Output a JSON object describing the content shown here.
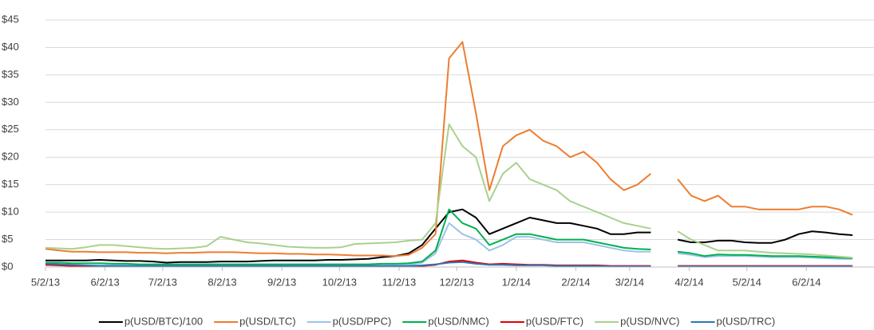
{
  "chart_data": {
    "type": "line",
    "x": [
      "2013-05-02",
      "2013-05-09",
      "2013-05-16",
      "2013-05-23",
      "2013-05-30",
      "2013-06-06",
      "2013-06-13",
      "2013-06-20",
      "2013-06-27",
      "2013-07-04",
      "2013-07-11",
      "2013-07-18",
      "2013-07-25",
      "2013-08-01",
      "2013-08-08",
      "2013-08-15",
      "2013-08-22",
      "2013-08-29",
      "2013-09-05",
      "2013-09-12",
      "2013-09-19",
      "2013-09-26",
      "2013-10-03",
      "2013-10-10",
      "2013-10-17",
      "2013-10-24",
      "2013-10-31",
      "2013-11-07",
      "2013-11-14",
      "2013-11-21",
      "2013-11-28",
      "2013-12-05",
      "2013-12-12",
      "2013-12-19",
      "2013-12-26",
      "2014-01-02",
      "2014-01-09",
      "2014-01-16",
      "2014-01-23",
      "2014-01-30",
      "2014-02-06",
      "2014-02-13",
      "2014-02-20",
      "2014-02-27",
      "2014-03-06",
      "2014-03-13",
      "2014-03-20",
      "2014-03-27",
      "2014-04-03",
      "2014-04-10",
      "2014-04-17",
      "2014-04-24",
      "2014-05-01",
      "2014-05-08",
      "2014-05-15",
      "2014-05-22",
      "2014-05-29",
      "2014-06-05",
      "2014-06-12",
      "2014-06-19",
      "2014-06-26"
    ],
    "xlim": [
      "2013-05-02",
      "2014-07-03"
    ],
    "xticks": [
      {
        "value": "2013-05-02",
        "label": "5/2/13"
      },
      {
        "value": "2013-06-02",
        "label": "6/2/13"
      },
      {
        "value": "2013-07-02",
        "label": "7/2/13"
      },
      {
        "value": "2013-08-02",
        "label": "8/2/13"
      },
      {
        "value": "2013-09-02",
        "label": "9/2/13"
      },
      {
        "value": "2013-10-02",
        "label": "10/2/13"
      },
      {
        "value": "2013-11-02",
        "label": "11/2/13"
      },
      {
        "value": "2013-12-02",
        "label": "12/2/13"
      },
      {
        "value": "2014-01-02",
        "label": "1/2/14"
      },
      {
        "value": "2014-02-02",
        "label": "2/2/14"
      },
      {
        "value": "2014-03-02",
        "label": "3/2/14"
      },
      {
        "value": "2014-04-02",
        "label": "4/2/14"
      },
      {
        "value": "2014-05-02",
        "label": "5/2/14"
      },
      {
        "value": "2014-06-02",
        "label": "6/2/14"
      }
    ],
    "ylim": [
      0,
      45
    ],
    "yticks": [
      {
        "value": 0,
        "label": "$0"
      },
      {
        "value": 5,
        "label": "$5"
      },
      {
        "value": 10,
        "label": "$10"
      },
      {
        "value": 15,
        "label": "$15"
      },
      {
        "value": 20,
        "label": "$20"
      },
      {
        "value": 25,
        "label": "$25"
      },
      {
        "value": 30,
        "label": "$30"
      },
      {
        "value": 35,
        "label": "$35"
      },
      {
        "value": 40,
        "label": "$40"
      },
      {
        "value": 45,
        "label": "$45"
      }
    ],
    "grid": true,
    "legend": "bottom",
    "series": [
      {
        "name": "p(USD/BTC)/100",
        "color": "#000000",
        "values": [
          1.2,
          1.2,
          1.2,
          1.2,
          1.3,
          1.2,
          1.1,
          1.1,
          1.0,
          0.8,
          0.9,
          0.9,
          0.9,
          1.0,
          1.0,
          1.0,
          1.1,
          1.2,
          1.2,
          1.2,
          1.2,
          1.3,
          1.3,
          1.4,
          1.5,
          1.8,
          2.0,
          2.5,
          4,
          7,
          10,
          10.5,
          9,
          6,
          7,
          8,
          9,
          8.5,
          8,
          8,
          7.5,
          7,
          6,
          6,
          6.3,
          6.3,
          null,
          5,
          4.5,
          4.5,
          4.8,
          4.8,
          4.5,
          4.4,
          4.4,
          5,
          6,
          6.5,
          6.3,
          6,
          5.8
        ]
      },
      {
        "name": "p(USD/LTC)",
        "color": "#ed7d31",
        "values": [
          3.3,
          3.0,
          2.8,
          2.8,
          2.7,
          2.7,
          2.7,
          2.6,
          2.6,
          2.5,
          2.6,
          2.6,
          2.7,
          2.7,
          2.7,
          2.6,
          2.5,
          2.5,
          2.4,
          2.4,
          2.3,
          2.3,
          2.2,
          2.1,
          2.1,
          2.1,
          2.0,
          2.2,
          3.5,
          6,
          38,
          41,
          28,
          14,
          22,
          24,
          25,
          23,
          22,
          20,
          21,
          19,
          16,
          14,
          15,
          17,
          null,
          16,
          13,
          12,
          13,
          11,
          11,
          10.5,
          10.5,
          10.5,
          10.5,
          11,
          11,
          10.5,
          9.5
        ]
      },
      {
        "name": "p(USD/PPC)",
        "color": "#9dc3e6",
        "values": [
          0.4,
          0.4,
          0.3,
          0.3,
          0.3,
          0.3,
          0.3,
          0.3,
          0.3,
          0.3,
          0.3,
          0.3,
          0.3,
          0.3,
          0.3,
          0.3,
          0.3,
          0.3,
          0.3,
          0.3,
          0.3,
          0.3,
          0.3,
          0.3,
          0.3,
          0.3,
          0.3,
          0.4,
          0.8,
          2.5,
          8,
          6,
          5,
          3,
          4,
          5.5,
          5.5,
          5,
          4.5,
          4.5,
          4.5,
          4,
          3.5,
          3,
          2.8,
          2.8,
          null,
          2.5,
          2.2,
          1.8,
          2,
          2,
          2,
          1.9,
          1.8,
          1.8,
          1.8,
          1.7,
          1.6,
          1.5,
          1.5
        ]
      },
      {
        "name": "p(USD/NMC)",
        "color": "#00b050",
        "values": [
          0.8,
          0.8,
          0.7,
          0.7,
          0.7,
          0.6,
          0.6,
          0.5,
          0.5,
          0.5,
          0.5,
          0.5,
          0.5,
          0.5,
          0.5,
          0.5,
          0.5,
          0.5,
          0.5,
          0.5,
          0.5,
          0.5,
          0.5,
          0.5,
          0.5,
          0.6,
          0.6,
          0.7,
          1,
          3,
          10.5,
          8,
          7,
          4,
          5,
          6,
          6,
          5.5,
          5,
          5,
          5,
          4.5,
          4,
          3.5,
          3.3,
          3.2,
          null,
          2.8,
          2.5,
          2,
          2.3,
          2.2,
          2.2,
          2.1,
          2,
          2,
          2,
          1.9,
          1.8,
          1.7,
          1.6
        ]
      },
      {
        "name": "p(USD/FTC)",
        "color": "#e00000",
        "values": [
          0.4,
          0.3,
          0.2,
          0.1,
          0.1,
          0.1,
          0.1,
          0.1,
          0.1,
          0.1,
          0.1,
          0.1,
          0.1,
          0.1,
          0.1,
          0.1,
          0.1,
          0.1,
          0.1,
          0.1,
          0.1,
          0.1,
          0.1,
          0.1,
          0.1,
          0.1,
          0.1,
          0.1,
          0.2,
          0.4,
          1.0,
          1.2,
          0.8,
          0.5,
          0.6,
          0.5,
          0.4,
          0.4,
          0.3,
          0.3,
          0.3,
          0.3,
          0.2,
          0.2,
          0.2,
          0.2,
          null,
          0.2,
          0.2,
          0.2,
          0.2,
          0.2,
          0.2,
          0.2,
          0.2,
          0.2,
          0.2,
          0.2,
          0.2,
          0.2,
          0.2
        ]
      },
      {
        "name": "p(USD/NVC)",
        "color": "#a9d18e",
        "values": [
          3.5,
          3.4,
          3.3,
          3.6,
          4.0,
          4.0,
          3.8,
          3.6,
          3.4,
          3.3,
          3.4,
          3.5,
          3.8,
          5.5,
          5.0,
          4.5,
          4.3,
          4.0,
          3.7,
          3.6,
          3.5,
          3.5,
          3.6,
          4.2,
          4.3,
          4.4,
          4.5,
          4.8,
          5,
          8,
          26,
          22,
          20,
          12,
          17,
          19,
          16,
          15,
          14,
          12,
          11,
          10,
          9,
          8,
          7.5,
          7,
          null,
          6.5,
          5,
          4,
          3,
          3,
          3,
          2.8,
          2.6,
          2.5,
          2.4,
          2.3,
          2.1,
          1.9,
          1.7
        ]
      },
      {
        "name": "p(USD/TRC)",
        "color": "#2e75b6",
        "values": [
          0.6,
          0.5,
          0.4,
          0.3,
          0.2,
          0.2,
          0.2,
          0.2,
          0.2,
          0.2,
          0.2,
          0.2,
          0.2,
          0.2,
          0.2,
          0.2,
          0.2,
          0.2,
          0.2,
          0.2,
          0.2,
          0.2,
          0.2,
          0.2,
          0.2,
          0.2,
          0.2,
          0.2,
          0.3,
          0.5,
          0.8,
          0.9,
          0.6,
          0.4,
          0.4,
          0.3,
          0.3,
          0.3,
          0.2,
          0.2,
          0.2,
          0.2,
          0.1,
          0.1,
          0.1,
          0.1,
          null,
          0.1,
          0.1,
          0.1,
          0.1,
          0.1,
          0.1,
          0.1,
          0.1,
          0.1,
          0.1,
          0.1,
          0.1,
          0.1,
          0.1
        ]
      }
    ]
  }
}
